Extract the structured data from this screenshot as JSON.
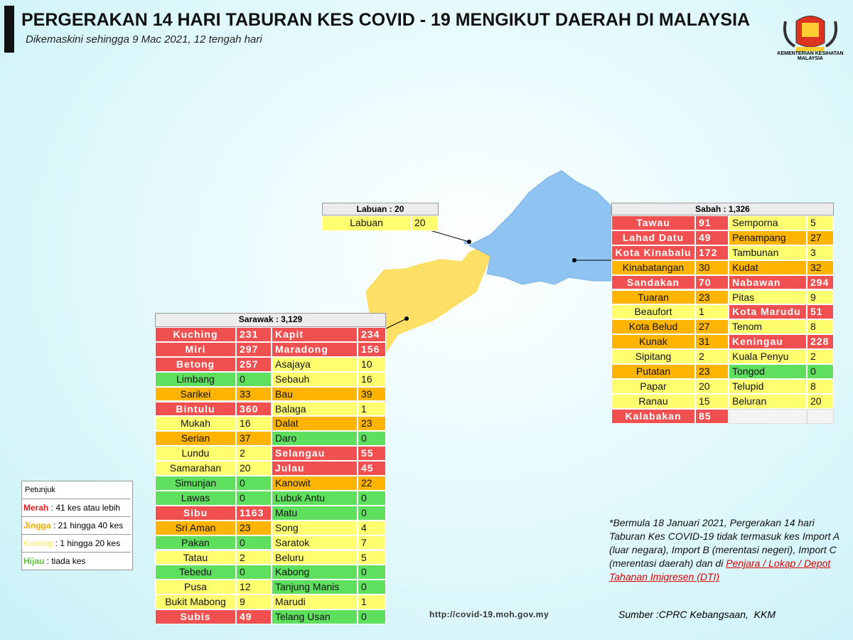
{
  "header": {
    "title": "PERGERAKAN 14 HARI TABURAN KES COVID - 19 MENGIKUT DAERAH DI MALAYSIA",
    "subtitle": "Dikemaskini sehingga 9 Mac 2021, 12 tengah hari",
    "logo_text": "KEMENTERIAN KESIHATAN MALAYSIA"
  },
  "tables": [
    {
      "title": "Labuan : 20",
      "columns": [
        [
          {
            "name": "Labuan",
            "cases": 20,
            "color": "#ffff70"
          }
        ]
      ]
    },
    {
      "title": "Sabah : 1,326",
      "columns": [
        [
          {
            "name": "Tawau",
            "cases": 91,
            "color": "#f0504f"
          },
          {
            "name": "Lahad Datu",
            "cases": 49,
            "color": "#f0504f"
          },
          {
            "name": "Kota Kinabalu",
            "cases": 172,
            "color": "#f0504f"
          },
          {
            "name": "Kinabatangan",
            "cases": 30,
            "color": "#ffb400"
          },
          {
            "name": "Sandakan",
            "cases": 70,
            "color": "#f0504f"
          },
          {
            "name": "Tuaran",
            "cases": 23,
            "color": "#ffb400"
          },
          {
            "name": "Beaufort",
            "cases": 1,
            "color": "#ffff70"
          },
          {
            "name": "Kota Belud",
            "cases": 27,
            "color": "#ffb400"
          },
          {
            "name": "Kunak",
            "cases": 31,
            "color": "#ffb400"
          },
          {
            "name": "Sipitang",
            "cases": 2,
            "color": "#ffff70"
          },
          {
            "name": "Putatan",
            "cases": 23,
            "color": "#ffb400"
          },
          {
            "name": "Papar",
            "cases": 20,
            "color": "#ffff70"
          },
          {
            "name": "Ranau",
            "cases": 15,
            "color": "#ffff70"
          },
          {
            "name": "Kalabakan",
            "cases": 85,
            "color": "#f0504f"
          }
        ],
        [
          {
            "name": "Semporna",
            "cases": 5,
            "color": "#ffff70"
          },
          {
            "name": "Penampang",
            "cases": 27,
            "color": "#ffb400"
          },
          {
            "name": "Tambunan",
            "cases": 3,
            "color": "#ffff70"
          },
          {
            "name": "Kudat",
            "cases": 32,
            "color": "#ffb400"
          },
          {
            "name": "Nabawan",
            "cases": 294,
            "color": "#f0504f"
          },
          {
            "name": "Pitas",
            "cases": 9,
            "color": "#ffff70"
          },
          {
            "name": "Kota Marudu",
            "cases": 51,
            "color": "#f0504f"
          },
          {
            "name": "Tenom",
            "cases": 8,
            "color": "#ffff70"
          },
          {
            "name": "Keningau",
            "cases": 228,
            "color": "#f0504f"
          },
          {
            "name": "Kuala Penyu",
            "cases": 2,
            "color": "#ffff70"
          },
          {
            "name": "Tongod",
            "cases": 0,
            "color": "#5ee05e"
          },
          {
            "name": "Telupid",
            "cases": 8,
            "color": "#ffff70"
          },
          {
            "name": "Beluran",
            "cases": 20,
            "color": "#ffff70"
          }
        ]
      ]
    },
    {
      "title": "Sarawak : 3,129",
      "columns": [
        [
          {
            "name": "Kuching",
            "cases": 231,
            "color": "#f0504f"
          },
          {
            "name": "Miri",
            "cases": 297,
            "color": "#f0504f"
          },
          {
            "name": "Betong",
            "cases": 257,
            "color": "#f0504f"
          },
          {
            "name": "Limbang",
            "cases": 0,
            "color": "#5ee05e"
          },
          {
            "name": "Sarikei",
            "cases": 33,
            "color": "#ffb400"
          },
          {
            "name": "Bintulu",
            "cases": 360,
            "color": "#f0504f"
          },
          {
            "name": "Mukah",
            "cases": 16,
            "color": "#ffff70"
          },
          {
            "name": "Serian",
            "cases": 37,
            "color": "#ffb400"
          },
          {
            "name": "Lundu",
            "cases": 2,
            "color": "#ffff70"
          },
          {
            "name": "Samarahan",
            "cases": 20,
            "color": "#ffff70"
          },
          {
            "name": "Simunjan",
            "cases": 0,
            "color": "#5ee05e"
          },
          {
            "name": "Lawas",
            "cases": 0,
            "color": "#5ee05e"
          },
          {
            "name": "Sibu",
            "cases": 1163,
            "color": "#f0504f"
          },
          {
            "name": "Sri Aman",
            "cases": 23,
            "color": "#ffb400"
          },
          {
            "name": "Pakan",
            "cases": 0,
            "color": "#5ee05e"
          },
          {
            "name": "Tatau",
            "cases": 2,
            "color": "#ffff70"
          },
          {
            "name": "Tebedu",
            "cases": 0,
            "color": "#5ee05e"
          },
          {
            "name": "Pusa",
            "cases": 12,
            "color": "#ffff70"
          },
          {
            "name": "Bukit Mabong",
            "cases": 9,
            "color": "#ffff70"
          },
          {
            "name": "Subis",
            "cases": 49,
            "color": "#f0504f"
          }
        ],
        [
          {
            "name": "Kapit",
            "cases": 234,
            "color": "#f0504f"
          },
          {
            "name": "Maradong",
            "cases": 156,
            "color": "#f0504f"
          },
          {
            "name": "Asajaya",
            "cases": 10,
            "color": "#ffff70"
          },
          {
            "name": "Sebauh",
            "cases": 16,
            "color": "#ffff70"
          },
          {
            "name": "Bau",
            "cases": 39,
            "color": "#ffb400"
          },
          {
            "name": "Balaga",
            "cases": 1,
            "color": "#ffff70"
          },
          {
            "name": "Dalat",
            "cases": 23,
            "color": "#ffb400"
          },
          {
            "name": "Daro",
            "cases": 0,
            "color": "#5ee05e"
          },
          {
            "name": "Selangau",
            "cases": 55,
            "color": "#f0504f"
          },
          {
            "name": "Julau",
            "cases": 45,
            "color": "#f0504f"
          },
          {
            "name": "Kanowit",
            "cases": 22,
            "color": "#ffb400"
          },
          {
            "name": "Lubuk Antu",
            "cases": 0,
            "color": "#5ee05e"
          },
          {
            "name": "Matu",
            "cases": 0,
            "color": "#5ee05e"
          },
          {
            "name": "Song",
            "cases": 4,
            "color": "#ffff70"
          },
          {
            "name": "Saratok",
            "cases": 7,
            "color": "#ffff70"
          },
          {
            "name": "Beluru",
            "cases": 5,
            "color": "#ffff70"
          },
          {
            "name": "Kabong",
            "cases": 0,
            "color": "#5ee05e"
          },
          {
            "name": "Tanjung Manis",
            "cases": 0,
            "color": "#5ee05e"
          },
          {
            "name": "Marudi",
            "cases": 1,
            "color": "#ffff70"
          },
          {
            "name": "Telang Usan",
            "cases": 0,
            "color": "#5ee05e"
          }
        ]
      ]
    }
  ],
  "legend": {
    "title": "Petunjuk",
    "items": [
      {
        "label": "Merah",
        "text": " : 41 kes atau lebih",
        "color": "#e02020"
      },
      {
        "label": "Jingga",
        "text": " : 21 hingga 40 kes",
        "color": "#f0a800"
      },
      {
        "label": "Kuning",
        "text": " : 1 hingga 20 kes",
        "color": "#f5f080"
      },
      {
        "label": "Hijau",
        "text": " : tiada kes",
        "color": "#60c040"
      }
    ]
  },
  "note": {
    "text": "*Bermula 18 Januari 2021, Pergerakan 14 hari Taburan Kes COVID-19 tidak termasuk kes Import A (luar negara), Import B (merentasi negeri), Import C (merentasi daerah) dan di",
    "link": "Penjara / Lokap / Depot Tahanan Imigresen (DTI)"
  },
  "url": "http://covid-19.moh.gov.my",
  "source": "Sumber :CPRC Kebangsaan,  KKM"
}
